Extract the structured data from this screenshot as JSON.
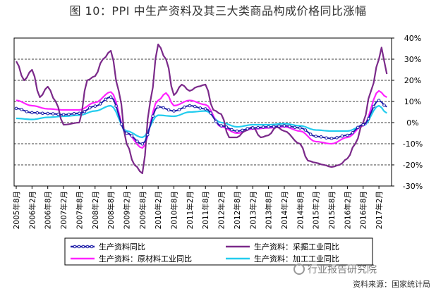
{
  "title": "图 10：PPI 中生产资料及其三大类商品构成价格同比涨幅",
  "source": "资料来源：国家统计局",
  "watermark": "行业报告研究院",
  "watermark_icon": "speech-bubble-icon",
  "chart_data": {
    "type": "line",
    "title": "图 10：PPI 中生产资料及其三大类商品构成价格同比涨幅",
    "ylim": [
      -30,
      40
    ],
    "y_ticks": [
      40,
      30,
      20,
      10,
      0,
      -10,
      -20,
      -30
    ],
    "y_tick_labels": [
      "40%",
      "30%",
      "20%",
      "10%",
      "0%",
      "-10%",
      "-20%",
      "-30%"
    ],
    "y_axis_side": "right",
    "grid": "horizontal dashed",
    "x_tick_labels": [
      "2005年8月",
      "2006年2月",
      "2006年8月",
      "2007年2月",
      "2007年8月",
      "2008年2月",
      "2008年8月",
      "2009年2月",
      "2009年8月",
      "2010年2月",
      "2010年8月",
      "2011年2月",
      "2011年8月",
      "2012年2月",
      "2012年8月",
      "2013年2月",
      "2013年8月",
      "2014年2月",
      "2014年8月",
      "2015年2月",
      "2015年8月",
      "2016年2月",
      "2016年8月",
      "2017年2月"
    ],
    "legend_position": "bottom",
    "x_start": "2005年8月",
    "x_end": "2017年5月",
    "series": [
      {
        "name": "生产资料同比",
        "color": "#1f1fa8",
        "marker": "circle",
        "values": [
          [
            0,
            6.7
          ],
          [
            6,
            4.7
          ],
          [
            12,
            4.3
          ],
          [
            18,
            3.8
          ],
          [
            24,
            4.4
          ],
          [
            30,
            7.8
          ],
          [
            36,
            12.1
          ],
          [
            42,
            -5.0
          ],
          [
            48,
            -10.1
          ],
          [
            54,
            7.5
          ],
          [
            60,
            5.5
          ],
          [
            66,
            8.0
          ],
          [
            72,
            6.5
          ],
          [
            78,
            -1.5
          ],
          [
            84,
            -4.0
          ],
          [
            90,
            -2.5
          ],
          [
            96,
            -2.0
          ],
          [
            102,
            -1.5
          ],
          [
            108,
            -2.5
          ],
          [
            114,
            -6.5
          ],
          [
            120,
            -7.5
          ],
          [
            126,
            -6.0
          ],
          [
            132,
            -1.0
          ],
          [
            138,
            10.5
          ],
          [
            141,
            7.5
          ]
        ]
      },
      {
        "name": "生产资料：采掘工业同比",
        "color": "#7b2a8a",
        "values": [
          [
            0,
            29.0
          ],
          [
            3,
            20.0
          ],
          [
            6,
            25.0
          ],
          [
            9,
            12.0
          ],
          [
            12,
            17.0
          ],
          [
            15,
            10.0
          ],
          [
            18,
            -1.0
          ],
          [
            24,
            0.0
          ],
          [
            27,
            20.0
          ],
          [
            30,
            22.0
          ],
          [
            33,
            30.0
          ],
          [
            36,
            34.0
          ],
          [
            39,
            15.0
          ],
          [
            42,
            -10.0
          ],
          [
            45,
            -20.0
          ],
          [
            48,
            -24.0
          ],
          [
            51,
            10.0
          ],
          [
            54,
            37.0
          ],
          [
            57,
            30.0
          ],
          [
            60,
            13.0
          ],
          [
            63,
            18.0
          ],
          [
            66,
            15.0
          ],
          [
            69,
            17.0
          ],
          [
            72,
            18.0
          ],
          [
            75,
            6.0
          ],
          [
            78,
            4.0
          ],
          [
            81,
            -7.0
          ],
          [
            84,
            -7.0
          ],
          [
            87,
            -4.0
          ],
          [
            90,
            -2.0
          ],
          [
            93,
            -7.0
          ],
          [
            96,
            -6.0
          ],
          [
            99,
            -2.0
          ],
          [
            102,
            -4.0
          ],
          [
            108,
            -10.0
          ],
          [
            111,
            -18.0
          ],
          [
            114,
            -19.0
          ],
          [
            117,
            -20.0
          ],
          [
            120,
            -21.0
          ],
          [
            123,
            -20.0
          ],
          [
            126,
            -17.0
          ],
          [
            129,
            -10.0
          ],
          [
            132,
            0.0
          ],
          [
            135,
            15.0
          ],
          [
            138,
            30.0
          ],
          [
            139,
            35.5
          ],
          [
            141,
            23.0
          ]
        ]
      },
      {
        "name": "生产资料：原材料工业同比",
        "color": "#ff22ff",
        "values": [
          [
            0,
            10.5
          ],
          [
            6,
            8.0
          ],
          [
            12,
            6.5
          ],
          [
            18,
            6.0
          ],
          [
            24,
            6.0
          ],
          [
            30,
            9.5
          ],
          [
            36,
            14.5
          ],
          [
            42,
            -5.0
          ],
          [
            48,
            -12.0
          ],
          [
            54,
            10.5
          ],
          [
            57,
            14.0
          ],
          [
            60,
            8.0
          ],
          [
            66,
            10.5
          ],
          [
            72,
            8.5
          ],
          [
            78,
            -2.0
          ],
          [
            84,
            -5.0
          ],
          [
            90,
            -3.0
          ],
          [
            96,
            -2.5
          ],
          [
            102,
            -2.0
          ],
          [
            108,
            -4.0
          ],
          [
            114,
            -9.0
          ],
          [
            120,
            -10.0
          ],
          [
            126,
            -7.0
          ],
          [
            132,
            -1.5
          ],
          [
            138,
            15.0
          ],
          [
            141,
            12.0
          ]
        ]
      },
      {
        "name": "生产资料：加工工业同比",
        "color": "#22ccee",
        "values": [
          [
            0,
            2.0
          ],
          [
            6,
            1.5
          ],
          [
            12,
            2.5
          ],
          [
            18,
            3.0
          ],
          [
            24,
            3.5
          ],
          [
            30,
            5.5
          ],
          [
            36,
            8.0
          ],
          [
            42,
            -4.0
          ],
          [
            48,
            -7.0
          ],
          [
            54,
            3.5
          ],
          [
            60,
            3.0
          ],
          [
            66,
            5.0
          ],
          [
            72,
            5.5
          ],
          [
            78,
            0.0
          ],
          [
            84,
            -2.0
          ],
          [
            90,
            -1.0
          ],
          [
            96,
            -1.0
          ],
          [
            102,
            -0.5
          ],
          [
            108,
            -1.5
          ],
          [
            114,
            -3.5
          ],
          [
            120,
            -4.0
          ],
          [
            126,
            -4.0
          ],
          [
            132,
            -1.5
          ],
          [
            138,
            8.0
          ],
          [
            141,
            4.5
          ]
        ]
      }
    ]
  }
}
